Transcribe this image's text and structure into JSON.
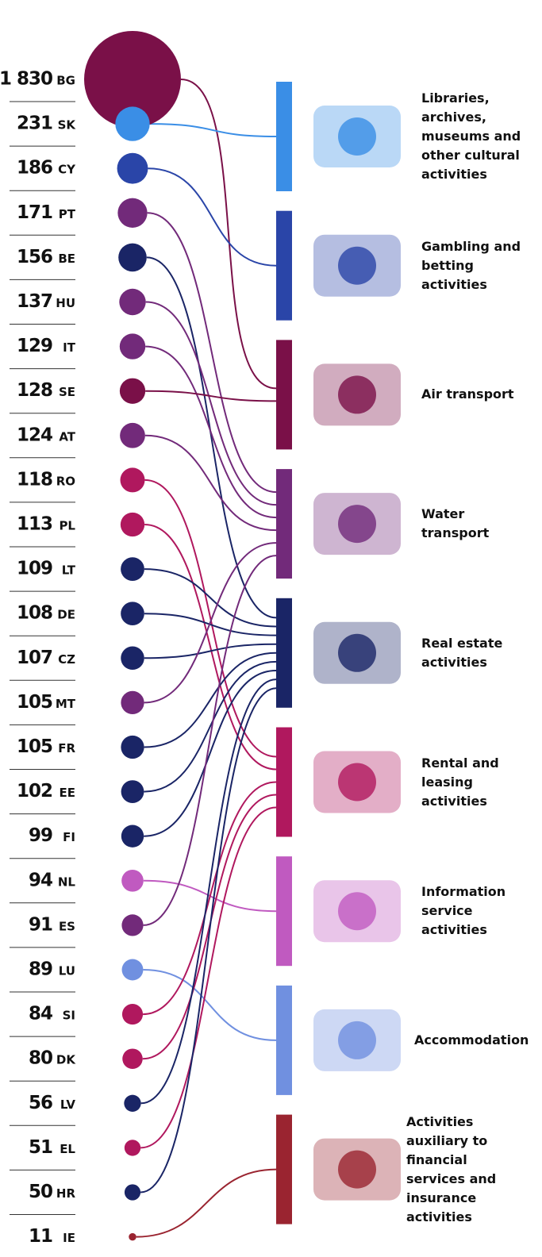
{
  "chart_data": {
    "type": "bubble-link",
    "countries": [
      {
        "code": "BG",
        "value": 1830,
        "value_label": "1 830",
        "color": "#7a1048"
      },
      {
        "code": "SK",
        "value": 231,
        "color": "#3a8ee6"
      },
      {
        "code": "CY",
        "value": 186,
        "color": "#2a45a8"
      },
      {
        "code": "PT",
        "value": 171,
        "color": "#722a7a"
      },
      {
        "code": "BE",
        "value": 156,
        "color": "#1a2566"
      },
      {
        "code": "HU",
        "value": 137,
        "color": "#722a7a"
      },
      {
        "code": "IT",
        "value": 129,
        "color": "#722a7a"
      },
      {
        "code": "SE",
        "value": 128,
        "color": "#7a1048"
      },
      {
        "code": "AT",
        "value": 124,
        "color": "#722a7a"
      },
      {
        "code": "RO",
        "value": 118,
        "color": "#b0185e"
      },
      {
        "code": "PL",
        "value": 113,
        "color": "#b0185e"
      },
      {
        "code": "LT",
        "value": 109,
        "color": "#1a2566"
      },
      {
        "code": "DE",
        "value": 108,
        "color": "#1a2566"
      },
      {
        "code": "CZ",
        "value": 107,
        "color": "#1a2566"
      },
      {
        "code": "MT",
        "value": 105,
        "color": "#722a7a"
      },
      {
        "code": "FR",
        "value": 105,
        "color": "#1a2566"
      },
      {
        "code": "EE",
        "value": 102,
        "color": "#1a2566"
      },
      {
        "code": "FI",
        "value": 99,
        "color": "#1a2566"
      },
      {
        "code": "NL",
        "value": 94,
        "color": "#c05ac0"
      },
      {
        "code": "ES",
        "value": 91,
        "color": "#722a7a"
      },
      {
        "code": "LU",
        "value": 89,
        "color": "#7090e0"
      },
      {
        "code": "SI",
        "value": 84,
        "color": "#b0185e"
      },
      {
        "code": "DK",
        "value": 80,
        "color": "#b0185e"
      },
      {
        "code": "LV",
        "value": 56,
        "color": "#1a2566"
      },
      {
        "code": "EL",
        "value": 51,
        "color": "#b0185e"
      },
      {
        "code": "HR",
        "value": 50,
        "color": "#1a2566"
      },
      {
        "code": "IE",
        "value": 11,
        "color": "#9a2430"
      }
    ],
    "sectors": [
      {
        "name": "Libraries, archives, museums and other cultural activities",
        "color": "#3a8ee6"
      },
      {
        "name": "Gambling and betting activities",
        "color": "#2a45a8"
      },
      {
        "name": "Air transport",
        "color": "#7a1048"
      },
      {
        "name": "Water transport",
        "color": "#722a7a"
      },
      {
        "name": "Real estate activities",
        "color": "#1a2566"
      },
      {
        "name": "Rental and leasing activities",
        "color": "#b0185e"
      },
      {
        "name": "Information service activities",
        "color": "#c05ac0"
      },
      {
        "name": "Accommodation",
        "color": "#7090e0"
      },
      {
        "name": "Activities auxiliary to financial services and insurance activities",
        "color": "#9a2430"
      }
    ]
  }
}
